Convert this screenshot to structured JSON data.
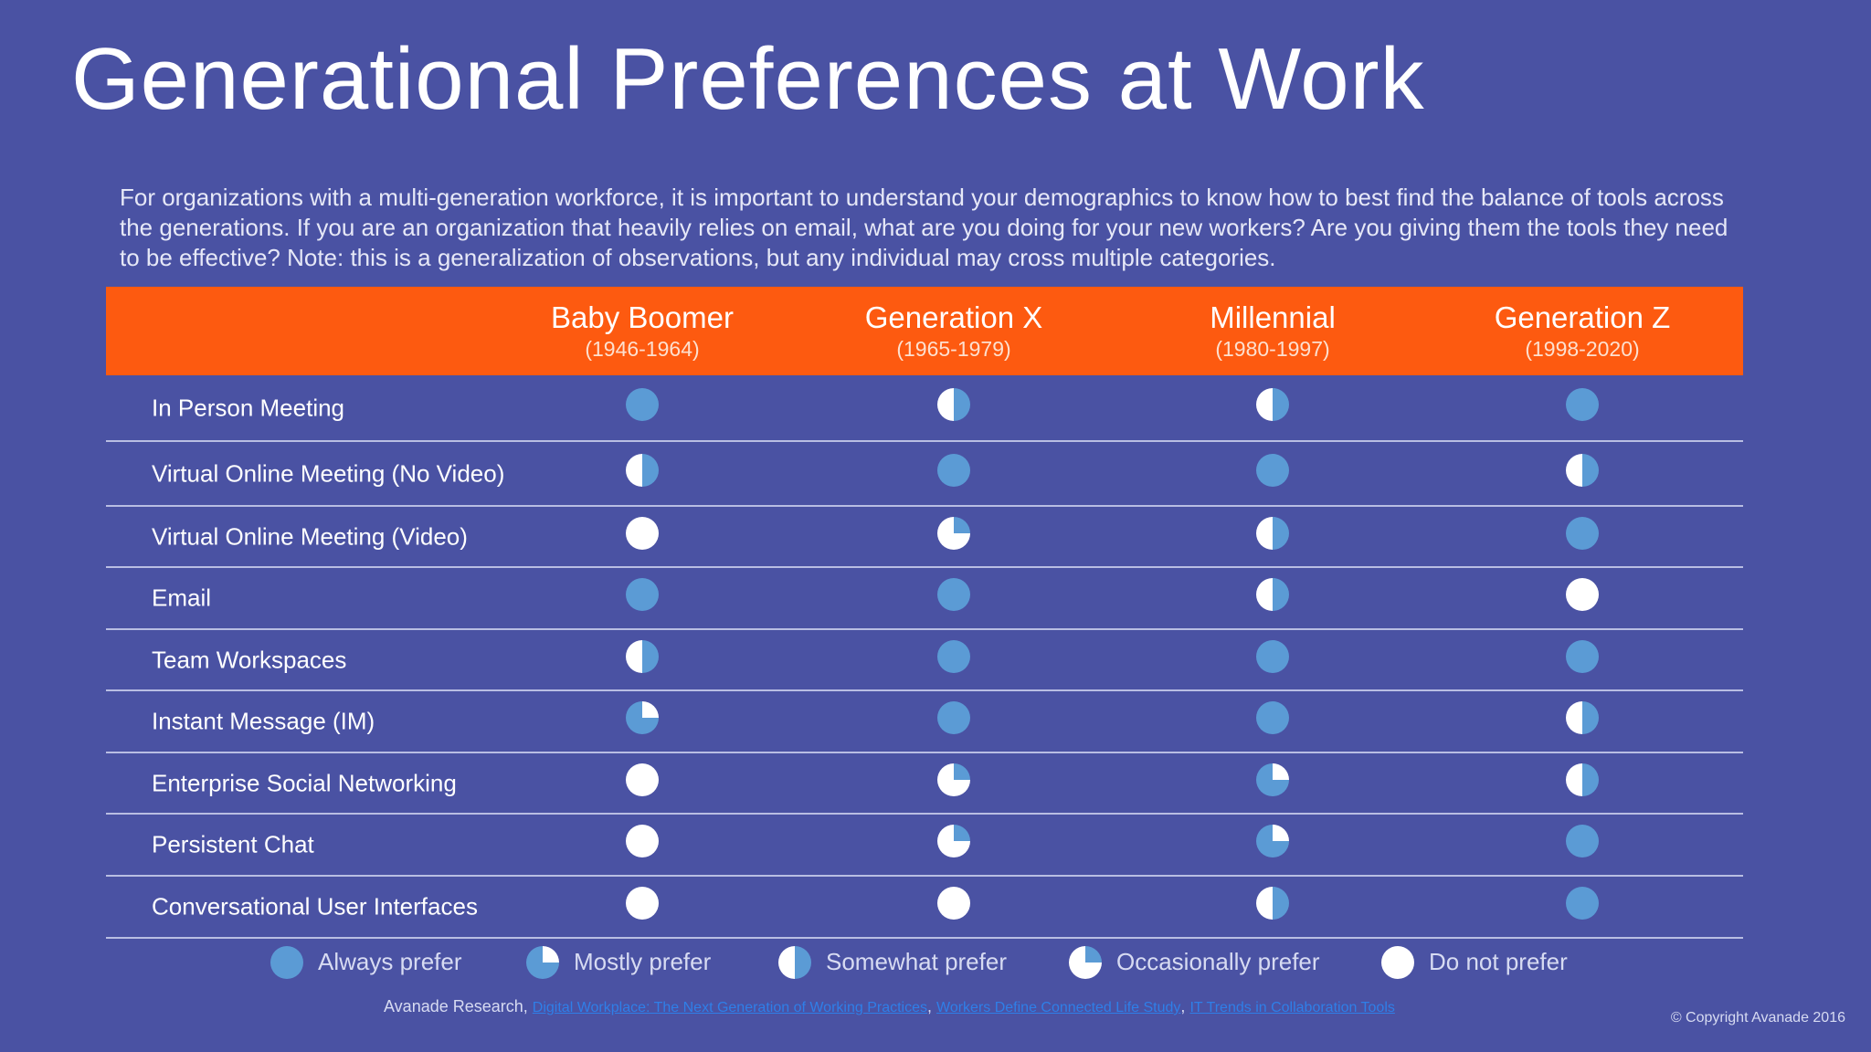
{
  "title": "Generational Preferences at Work",
  "intro": "For organizations with a multi-generation workforce, it is important to understand your demographics to know how to best find the balance of tools across the generations.  If you are an organization that heavily relies on email, what are you doing for your new workers?  Are you giving them the tools they need to be effective? Note: this is a generalization of observations, but any individual may cross multiple categories.",
  "colors": {
    "background": "#4a52a3",
    "header": "#fd5a10",
    "preference_blue": "#5b9bd5",
    "white": "#ffffff"
  },
  "columns": [
    {
      "name": "Baby Boomer",
      "years": "(1946-1964)"
    },
    {
      "name": "Generation X",
      "years": "(1965-1979)"
    },
    {
      "name": "Millennial",
      "years": "(1980-1997)"
    },
    {
      "name": "Generation Z",
      "years": "(1998-2020)"
    }
  ],
  "levels": {
    "always": "Always prefer",
    "mostly": "Mostly prefer",
    "somewhat": "Somewhat prefer",
    "occasionally": "Occasionally prefer",
    "never": "Do not prefer"
  },
  "level_fill_fraction": {
    "always": 1.0,
    "mostly": 0.75,
    "somewhat": 0.5,
    "occasionally": 0.25,
    "never": 0.0
  },
  "rows": [
    {
      "label": "In Person Meeting",
      "values": [
        "always",
        "somewhat",
        "somewhat",
        "always"
      ]
    },
    {
      "label": "Virtual Online Meeting (No Video)",
      "values": [
        "somewhat",
        "always",
        "always",
        "somewhat"
      ]
    },
    {
      "label": "Virtual Online Meeting (Video)",
      "values": [
        "never",
        "occasionally",
        "somewhat",
        "always"
      ]
    },
    {
      "label": "Email",
      "values": [
        "always",
        "always",
        "somewhat",
        "never"
      ]
    },
    {
      "label": "Team Workspaces",
      "values": [
        "somewhat",
        "always",
        "always",
        "always"
      ]
    },
    {
      "label": "Instant Message (IM)",
      "values": [
        "mostly",
        "always",
        "always",
        "somewhat"
      ]
    },
    {
      "label": "Enterprise Social Networking",
      "values": [
        "never",
        "occasionally",
        "mostly",
        "somewhat"
      ]
    },
    {
      "label": "Persistent Chat",
      "values": [
        "never",
        "occasionally",
        "mostly",
        "always"
      ]
    },
    {
      "label": "Conversational User Interfaces",
      "values": [
        "never",
        "never",
        "somewhat",
        "always"
      ]
    }
  ],
  "legend": [
    "always",
    "mostly",
    "somewhat",
    "occasionally",
    "never"
  ],
  "source": {
    "prefix": "Avanade Research,",
    "link1": "Digital Workplace: The Next Generation of Working Practices",
    "sep1": ",",
    "link2": "Workers Define Connected Life Study",
    "sep2": ",",
    "link3": "IT Trends in Collaboration Tools"
  },
  "copyright": "© Copyright Avanade 2016"
}
